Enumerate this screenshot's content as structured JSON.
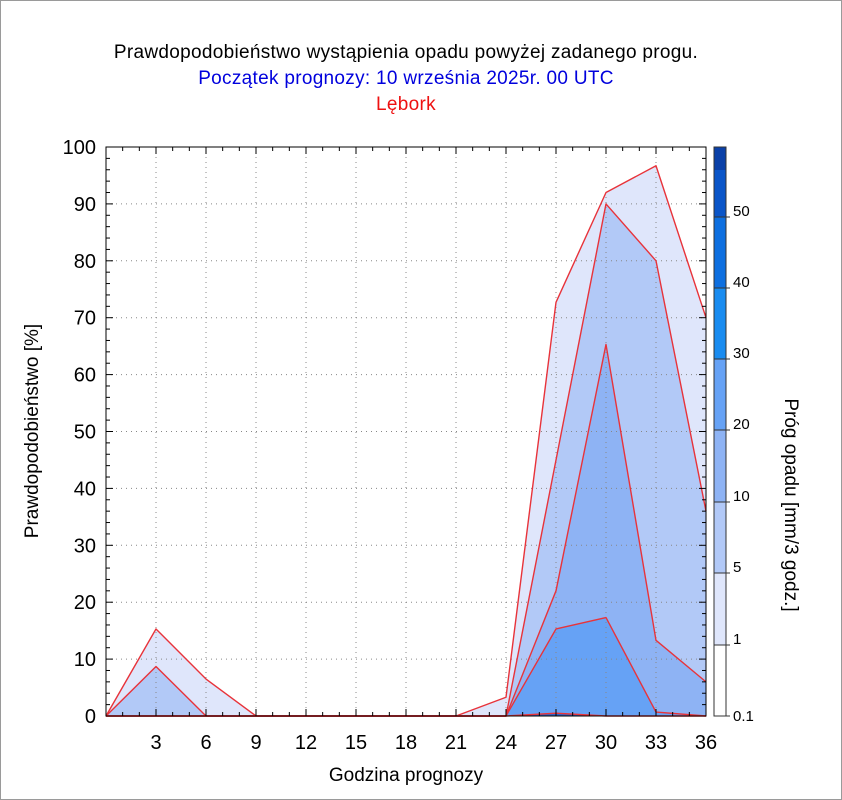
{
  "chart_data": {
    "type": "area",
    "title": "Prawdopodobieństwo wystąpienia opadu powyżej zadanego progu.",
    "subtitle": "Początek prognozy: 10 września 2025r. 00 UTC",
    "location": "Lębork",
    "xlabel": "Godzina prognozy",
    "ylabel": "Prawdopodobieństwo [%]",
    "colorbar_label": "Próg opadu [mm/3 godz.]",
    "xlim": [
      0,
      36
    ],
    "ylim": [
      0,
      100
    ],
    "x_ticks": [
      3,
      6,
      9,
      12,
      15,
      18,
      21,
      24,
      27,
      30,
      33,
      36
    ],
    "y_ticks": [
      0,
      10,
      20,
      30,
      40,
      50,
      60,
      70,
      80,
      90,
      100
    ],
    "x": [
      0,
      3,
      6,
      9,
      12,
      15,
      18,
      21,
      24,
      27,
      30,
      33,
      36
    ],
    "series": [
      {
        "threshold": "0.1",
        "color": "#dfe6fb",
        "values": [
          0,
          15.3,
          6.5,
          0,
          0,
          0,
          0,
          0,
          3.3,
          72.7,
          92,
          96.7,
          70
        ]
      },
      {
        "threshold": "1",
        "color": "#b2c9f7",
        "values": [
          0,
          8.7,
          0,
          0,
          0,
          0,
          0,
          0,
          0,
          45,
          90,
          80,
          36
        ]
      },
      {
        "threshold": "5",
        "color": "#8eb3f4",
        "values": [
          0,
          0,
          0,
          0,
          0,
          0,
          0,
          0,
          0,
          22,
          65.3,
          13.3,
          6
        ]
      },
      {
        "threshold": "10",
        "color": "#66a2f5",
        "values": [
          0,
          0,
          0,
          0,
          0,
          0,
          0,
          0,
          0,
          15.3,
          17.3,
          0.7,
          0
        ]
      },
      {
        "threshold": "20",
        "color": "#2f63c8",
        "values": [
          0,
          0,
          0,
          0,
          0,
          0,
          0,
          0,
          0,
          0.5,
          0,
          0,
          0
        ]
      }
    ],
    "colorbar": {
      "levels": [
        "0.1",
        "1",
        "5",
        "10",
        "20",
        "30",
        "40",
        "50"
      ],
      "colors": [
        "#ffffff",
        "#dfe6fb",
        "#b2c9f7",
        "#8eb3f4",
        "#66a2f5",
        "#1a8cf0",
        "#0d6fe0",
        "#0a55c8",
        "#0a40a8"
      ]
    },
    "grid": true
  }
}
